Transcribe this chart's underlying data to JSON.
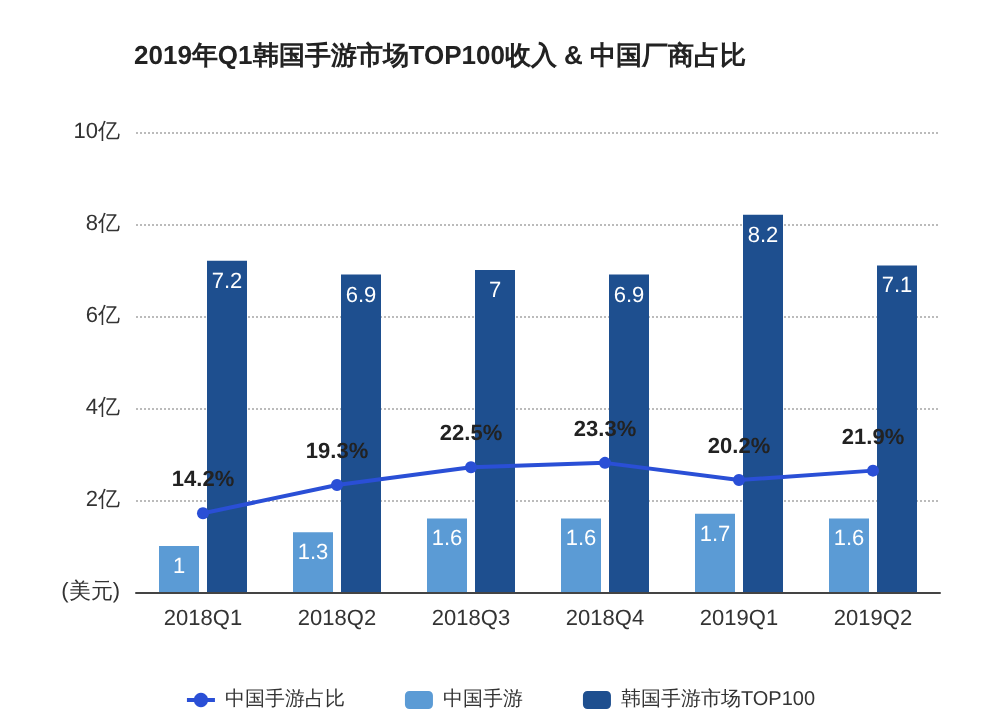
{
  "chart_data": {
    "type": "bar",
    "title": "2019年Q1韩国手游市场TOP100收入 & 中国厂商占比",
    "categories": [
      "2018Q1",
      "2018Q2",
      "2018Q3",
      "2018Q4",
      "2019Q1",
      "2019Q2"
    ],
    "series": [
      {
        "name": "中国手游占比",
        "type": "line",
        "axis": "y2",
        "color": "#2a4fd6",
        "values": [
          14.2,
          19.3,
          22.5,
          23.3,
          20.2,
          21.9
        ],
        "value_labels": [
          "14.2%",
          "19.3%",
          "22.5%",
          "23.3%",
          "20.2%",
          "21.9%"
        ]
      },
      {
        "name": "中国手游",
        "color": "#5b9bd5",
        "values": [
          1,
          1.3,
          1.6,
          1.6,
          1.7,
          1.6
        ]
      },
      {
        "name": "韩国手游市场TOP100",
        "color": "#1e4f8f",
        "values": [
          7.2,
          6.9,
          7,
          6.9,
          8.2,
          7.1
        ]
      }
    ],
    "data_labels": true,
    "ylim": [
      0,
      10
    ],
    "yticks": [
      {
        "value": 0,
        "label": "(美元)"
      },
      {
        "value": 2,
        "label": "2亿"
      },
      {
        "value": 4,
        "label": "4亿"
      },
      {
        "value": 6,
        "label": "6亿"
      },
      {
        "value": 8,
        "label": "8亿"
      },
      {
        "value": 10,
        "label": "10亿"
      }
    ],
    "y2lim": [
      0,
      83
    ],
    "tick_labels": "xy",
    "grid": "y",
    "legend": "bottom",
    "marker": "circle"
  }
}
